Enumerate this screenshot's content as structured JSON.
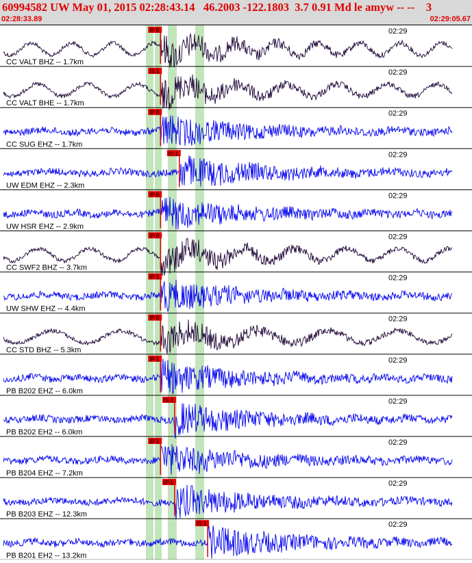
{
  "header": {
    "title": "60994582 UW May 01, 2015 02:28:43.14   46.2003 -122.1803  3.7 0.91 Md le amyw -- --    3",
    "start_time": "02:28:33.89",
    "end_time": "02:29:05.67"
  },
  "colors": {
    "header_bg": "#d9d9d9",
    "header_text": "#e00000",
    "trace_blue": "#0000ee",
    "trace_dark": "#1a0033",
    "pick_red": "#e00000",
    "phase_band": "#b8e0b0",
    "grid": "#555555"
  },
  "traces": [
    {
      "label": "CC VALT BHZ -- 1.7km",
      "time": "02:29",
      "pick": "IP 0",
      "color": "dark",
      "pickPos": 0.34
    },
    {
      "label": "CC VALT BHE -- 1.7km",
      "time": "02:29",
      "pick": "IS 1",
      "color": "dark",
      "pickPos": 0.34
    },
    {
      "label": "CC SUG EHZ -- 1.7km",
      "time": "02:29",
      "pick": "IP 0",
      "color": "blue",
      "pickPos": 0.34
    },
    {
      "label": "UW EDM EHZ -- 2.3km",
      "time": "02:29",
      "pick": "IS 1",
      "color": "blue",
      "pickPos": 0.38
    },
    {
      "label": "UW HSR EHZ -- 2.9km",
      "time": "02:29",
      "pick": "IP 0",
      "color": "blue",
      "pickPos": 0.34
    },
    {
      "label": "CC SWF2 BHZ -- 3.7km",
      "time": "02:29",
      "pick": "IP 0",
      "color": "dark",
      "pickPos": 0.34
    },
    {
      "label": "UW SHW EHZ -- 4.4km",
      "time": "02:29",
      "pick": "IP 1",
      "color": "blue",
      "pickPos": 0.34
    },
    {
      "label": "CC STD BHZ -- 5.3km",
      "time": "02:29",
      "pick": "IP 0",
      "color": "dark",
      "pickPos": 0.34
    },
    {
      "label": "PB B202 EHZ -- 6.0km",
      "time": "02:29",
      "pick": "IP 1",
      "color": "blue",
      "pickPos": 0.34
    },
    {
      "label": "PB B202 EH2 -- 6.0km",
      "time": "02:29",
      "pick": "IS 1",
      "color": "blue",
      "pickPos": 0.37
    },
    {
      "label": "PB B204 EHZ -- 7.2km",
      "time": "02:29",
      "pick": "IP 1",
      "color": "blue",
      "pickPos": 0.34
    },
    {
      "label": "PB B203 EHZ -- 12.3km",
      "time": "02:29",
      "pick": "IP 1",
      "color": "blue",
      "pickPos": 0.37
    },
    {
      "label": "PB B201 EH2 -- 13.2km",
      "time": "02:29",
      "pick": "IS 1",
      "color": "blue",
      "pickPos": 0.44
    }
  ]
}
